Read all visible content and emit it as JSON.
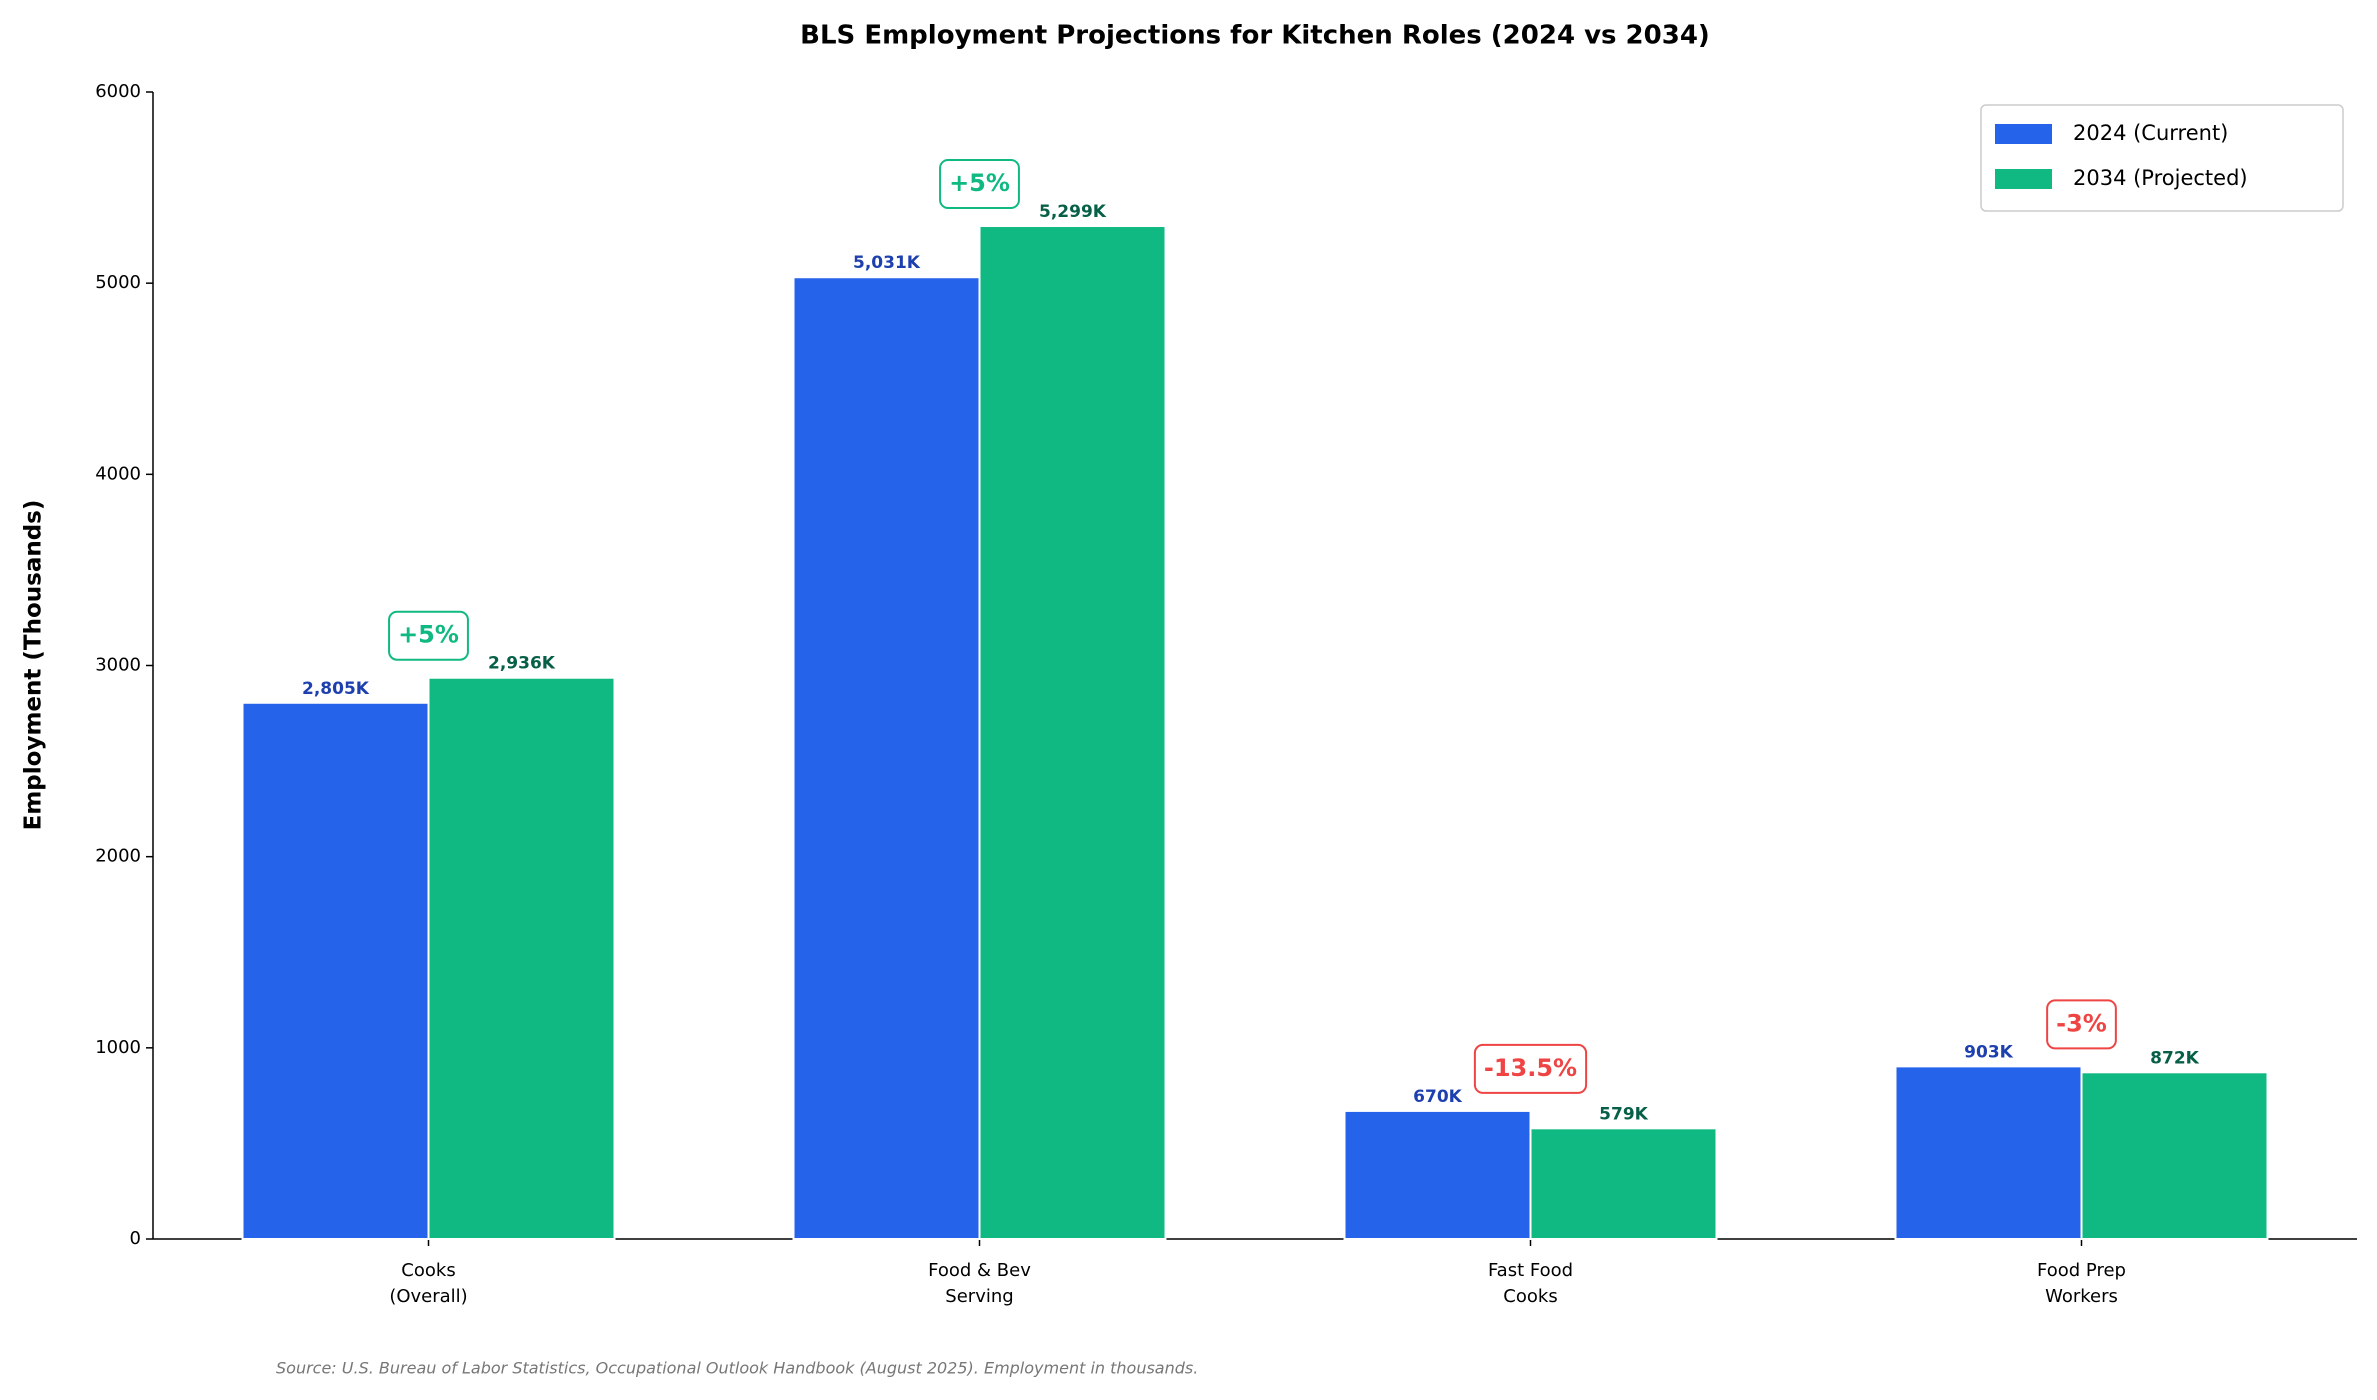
{
  "chart_data": {
    "type": "bar",
    "title": "BLS Employment Projections for Kitchen Roles (2024 vs 2034)",
    "y_label": "Employment (Thousands)",
    "categories": [
      "Cooks\n(Overall)",
      "Food & Bev\nServing",
      "Fast Food\nCooks",
      "Food Prep\nWorkers"
    ],
    "series": [
      {
        "name": "2024 (Current)",
        "color": "#2563eb",
        "label_color": "#1e40af",
        "values": [
          2805,
          5031,
          670,
          903
        ],
        "value_labels": [
          "2,805K",
          "5,031K",
          "670K",
          "903K"
        ]
      },
      {
        "name": "2034 (Projected)",
        "color": "#10b981",
        "label_color": "#065f46",
        "values": [
          2936,
          5299,
          579,
          872
        ],
        "value_labels": [
          "2,936K",
          "5,299K",
          "579K",
          "872K"
        ]
      }
    ],
    "annotations": [
      {
        "value": 5,
        "label": "+5%"
      },
      {
        "value": 5,
        "label": "+5%"
      },
      {
        "value": -13.5,
        "label": "-13.5%"
      },
      {
        "value": -3,
        "label": "-3%"
      }
    ],
    "ylim": [
      0,
      6000
    ],
    "yticks": [
      0,
      1000,
      2000,
      3000,
      4000,
      5000,
      6000
    ],
    "grid": false,
    "legend": "upper right",
    "source": "Source: U.S. Bureau of Labor Statistics, Occupational Outlook Handbook (August 2025). Employment in thousands."
  }
}
